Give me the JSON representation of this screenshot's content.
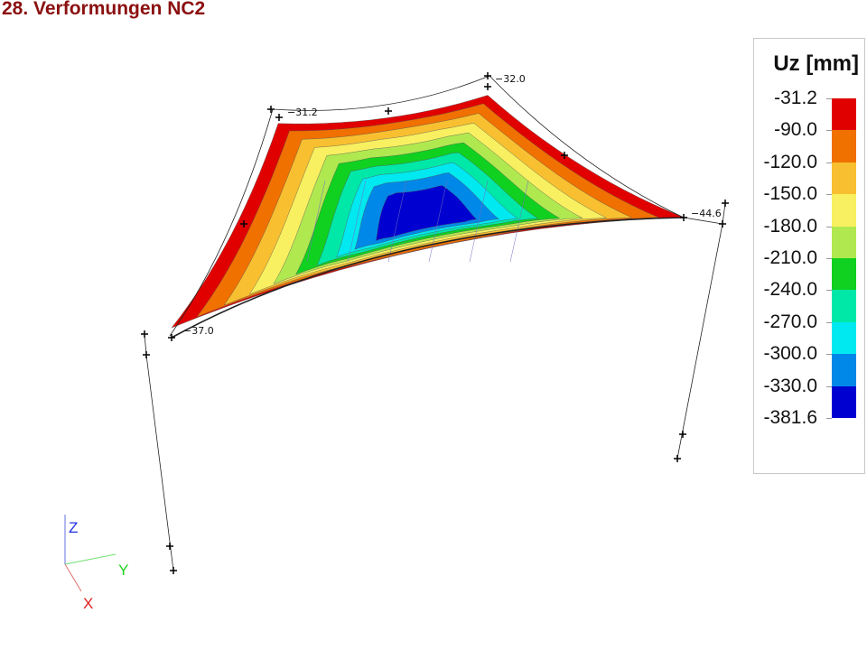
{
  "title": "28. Verformungen NC2",
  "legend": {
    "title": "Uz [mm]",
    "labels": [
      "-31.2",
      "-90.0",
      "-120.0",
      "-150.0",
      "-180.0",
      "-210.0",
      "-240.0",
      "-270.0",
      "-300.0",
      "-330.0",
      "-381.6"
    ],
    "colors": [
      "#e00000",
      "#f07000",
      "#f8c030",
      "#f8f060",
      "#b0e850",
      "#10d020",
      "#00e8a8",
      "#00e8f0",
      "#0088e8",
      "#0000d0"
    ]
  },
  "node_labels": {
    "top_left": "−31.2",
    "top": "−32.0",
    "right": "−44.6",
    "bottom_left": "−37.0"
  },
  "axes": {
    "z": "Z",
    "y": "Y",
    "x": "X",
    "z_color": "#2030e0",
    "y_color": "#20d020",
    "x_color": "#e02020"
  }
}
